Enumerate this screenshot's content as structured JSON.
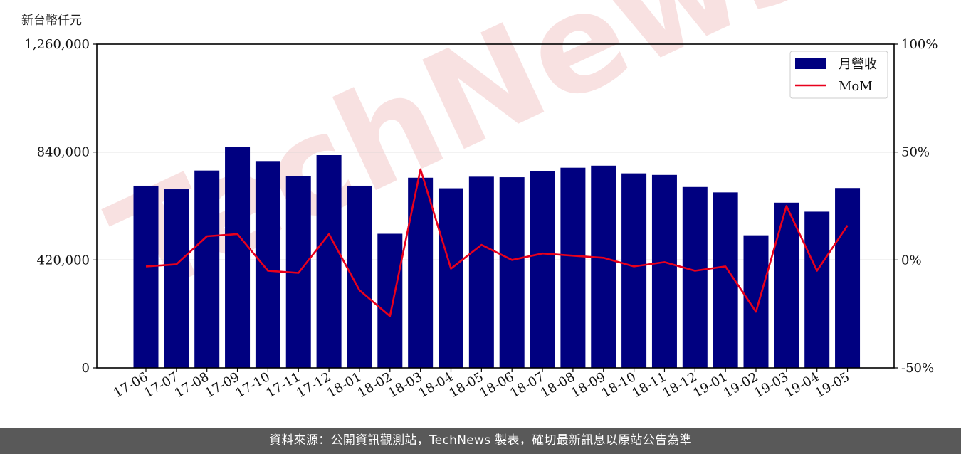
{
  "colors": {
    "bar": "#000080",
    "line": "#e8001c",
    "grid": "#cccccc",
    "footer_bg": "#595959",
    "watermark": "#f3c9c9"
  },
  "watermark_text": "TechNews",
  "footer_text": "資料來源：公開資訊觀測站，TechNews 製表，確切最新訊息以原站公告為準",
  "chart_data": {
    "type": "bar",
    "title": "",
    "ylabel": "新台幣仟元",
    "categories": [
      "17-06",
      "17-07",
      "17-08",
      "17-09",
      "17-10",
      "17-11",
      "17-12",
      "18-01",
      "18-02",
      "18-03",
      "18-04",
      "18-05",
      "18-06",
      "18-07",
      "18-08",
      "18-09",
      "18-10",
      "18-11",
      "18-12",
      "19-01",
      "19-02",
      "19-03",
      "19-04",
      "19-05"
    ],
    "series": [
      {
        "name": "月營收",
        "type": "bar",
        "axis": "left",
        "values": [
          709000,
          695000,
          768000,
          859000,
          805000,
          746000,
          828000,
          709000,
          522000,
          740000,
          699000,
          744000,
          742000,
          765000,
          779000,
          787000,
          757000,
          751000,
          704000,
          683000,
          516000,
          643000,
          608000,
          700000
        ]
      },
      {
        "name": "MoM",
        "type": "line",
        "axis": "right",
        "values": [
          -3,
          -2,
          11,
          12,
          -5,
          -6,
          12,
          -14,
          -26,
          42,
          -4,
          7,
          0,
          3,
          2,
          1,
          -3,
          -1,
          -5,
          -3,
          -24,
          25,
          -5,
          16
        ]
      }
    ],
    "y_left": {
      "range": [
        0,
        1260000
      ],
      "ticks": [
        0,
        420000,
        840000,
        1260000
      ],
      "tick_labels": [
        "0",
        "420,000",
        "840,000",
        "1,260,000"
      ]
    },
    "y_right": {
      "range": [
        -50,
        100
      ],
      "ticks": [
        -50,
        0,
        50,
        100
      ],
      "tick_labels": [
        "-50%",
        "0%",
        "50%",
        "100%"
      ]
    },
    "grid": true,
    "legend_position": "top-right"
  }
}
